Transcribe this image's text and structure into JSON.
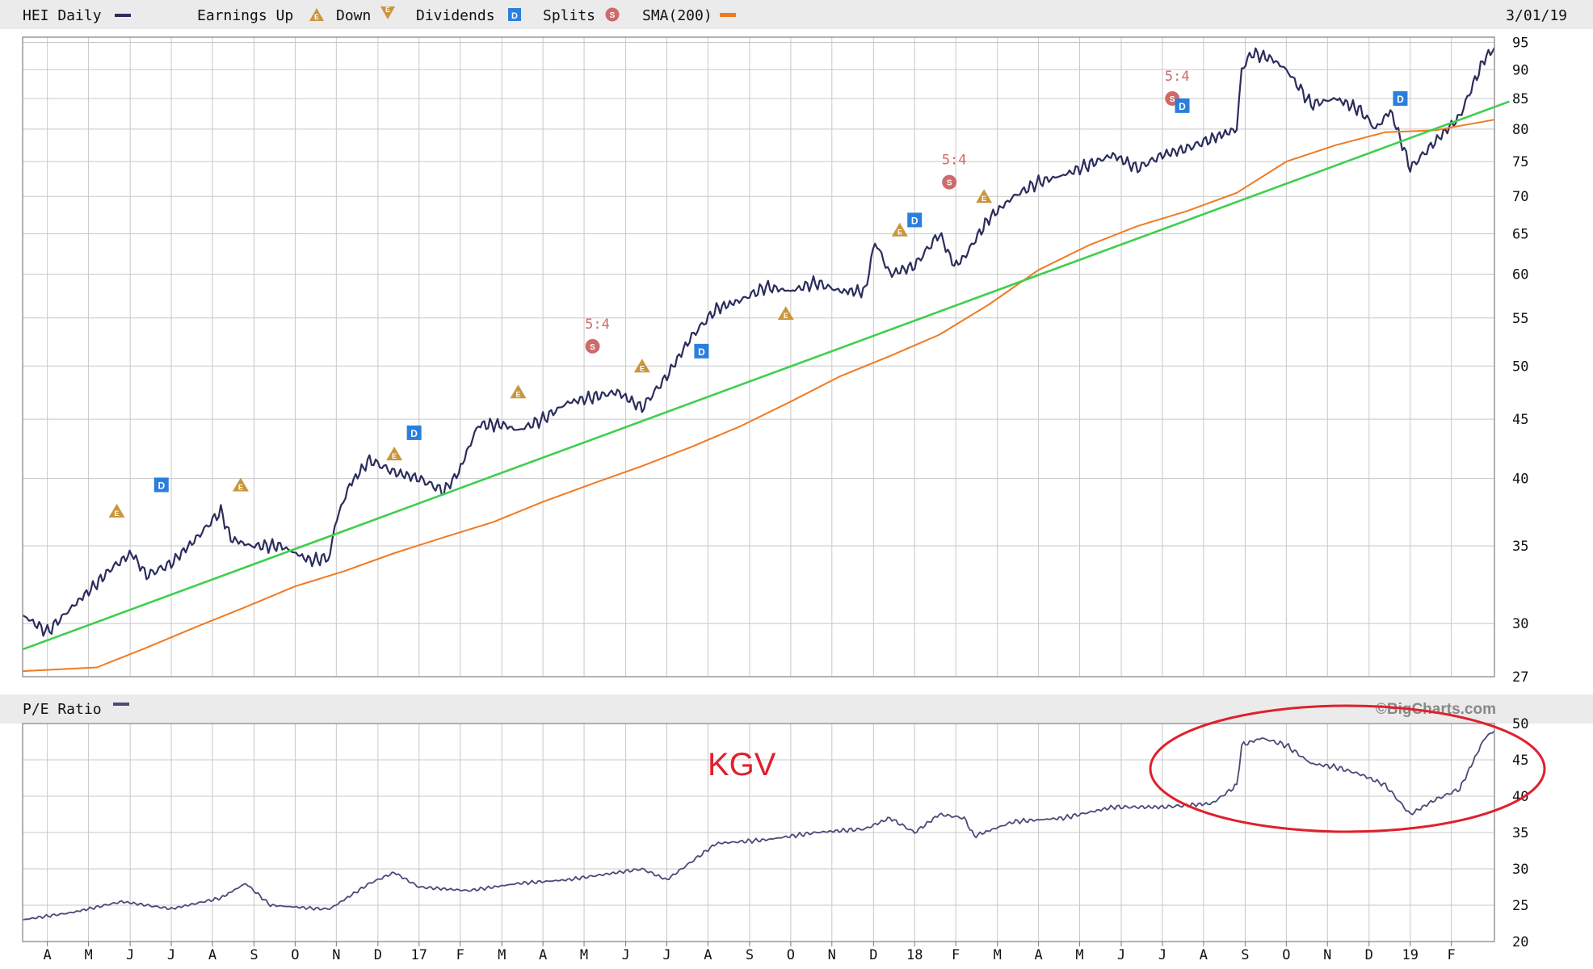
{
  "header": {
    "symbol_label": "HEI Daily",
    "earnings_up_label": "Earnings Up",
    "earnings_down_label": "Down",
    "dividends_label": "Dividends",
    "splits_label": "Splits",
    "sma_label": "SMA(200)",
    "date_label": "3/01/19",
    "earnings_icon_letter": "E",
    "dividend_icon_letter": "D",
    "split_icon_letter": "S"
  },
  "lower_header": {
    "pe_label": "P/E Ratio",
    "copyright": "©BigCharts.com"
  },
  "annotation": {
    "text": "KGV",
    "color": "#e0202c"
  },
  "colors": {
    "price": "#2b2d5c",
    "sma": "#f07a22",
    "trend": "#3ecf4e",
    "pe": "#4a4a78",
    "grid": "#c8c8c8",
    "header_bg": "#ebebeb",
    "earnings": "#c8963c",
    "dividend": "#2a7fdc",
    "split": "#cf6a6a"
  },
  "chart_data": [
    {
      "type": "line",
      "title": "HEI Daily",
      "log_scale": true,
      "ylim": [
        27,
        96
      ],
      "y_ticks": [
        27,
        30,
        35,
        40,
        45,
        50,
        55,
        60,
        65,
        70,
        75,
        80,
        85,
        90,
        95
      ],
      "x_range": [
        2016.2,
        2019.17
      ],
      "x_ticks": [
        {
          "t": 2016.25,
          "label": "A"
        },
        {
          "t": 2016.333,
          "label": "M"
        },
        {
          "t": 2016.417,
          "label": "J"
        },
        {
          "t": 2016.5,
          "label": "J"
        },
        {
          "t": 2016.583,
          "label": "A"
        },
        {
          "t": 2016.667,
          "label": "S"
        },
        {
          "t": 2016.75,
          "label": "O"
        },
        {
          "t": 2016.833,
          "label": "N"
        },
        {
          "t": 2016.917,
          "label": "D"
        },
        {
          "t": 2017.0,
          "label": "17"
        },
        {
          "t": 2017.083,
          "label": "F"
        },
        {
          "t": 2017.167,
          "label": "M"
        },
        {
          "t": 2017.25,
          "label": "A"
        },
        {
          "t": 2017.333,
          "label": "M"
        },
        {
          "t": 2017.417,
          "label": "J"
        },
        {
          "t": 2017.5,
          "label": "J"
        },
        {
          "t": 2017.583,
          "label": "A"
        },
        {
          "t": 2017.667,
          "label": "S"
        },
        {
          "t": 2017.75,
          "label": "O"
        },
        {
          "t": 2017.833,
          "label": "N"
        },
        {
          "t": 2017.917,
          "label": "D"
        },
        {
          "t": 2018.0,
          "label": "18"
        },
        {
          "t": 2018.083,
          "label": "F"
        },
        {
          "t": 2018.167,
          "label": "M"
        },
        {
          "t": 2018.25,
          "label": "A"
        },
        {
          "t": 2018.333,
          "label": "M"
        },
        {
          "t": 2018.417,
          "label": "J"
        },
        {
          "t": 2018.5,
          "label": "J"
        },
        {
          "t": 2018.583,
          "label": "A"
        },
        {
          "t": 2018.667,
          "label": "S"
        },
        {
          "t": 2018.75,
          "label": "O"
        },
        {
          "t": 2018.833,
          "label": "N"
        },
        {
          "t": 2018.917,
          "label": "D"
        },
        {
          "t": 2019.0,
          "label": "19"
        },
        {
          "t": 2019.083,
          "label": "F"
        }
      ],
      "series": [
        {
          "name": "HEI Daily",
          "x": [
            2016.2,
            2016.25,
            2016.3,
            2016.35,
            2016.38,
            2016.42,
            2016.45,
            2016.5,
            2016.55,
            2016.6,
            2016.62,
            2016.66,
            2016.72,
            2016.78,
            2016.82,
            2016.83,
            2016.86,
            2016.9,
            2016.95,
            2017.0,
            2017.05,
            2017.08,
            2017.12,
            2017.17,
            2017.2,
            2017.25,
            2017.3,
            2017.35,
            2017.4,
            2017.45,
            2017.5,
            2017.55,
            2017.6,
            2017.65,
            2017.7,
            2017.75,
            2017.8,
            2017.85,
            2017.9,
            2017.92,
            2017.95,
            2018.0,
            2018.05,
            2018.08,
            2018.1,
            2018.15,
            2018.2,
            2018.25,
            2018.3,
            2018.35,
            2018.4,
            2018.45,
            2018.5,
            2018.55,
            2018.6,
            2018.65,
            2018.66,
            2018.68,
            2018.72,
            2018.75,
            2018.8,
            2018.85,
            2018.9,
            2018.93,
            2018.96,
            2019.0,
            2019.05,
            2019.1,
            2019.15,
            2019.17
          ],
          "values": [
            30.5,
            29.5,
            31.0,
            32.5,
            33.5,
            34.5,
            33.0,
            33.8,
            35.5,
            37.5,
            35.5,
            35.0,
            35.0,
            34.0,
            34.2,
            36.5,
            39.5,
            41.5,
            40.5,
            40.0,
            39.0,
            40.5,
            44.5,
            44.5,
            44.0,
            45.0,
            46.5,
            47.0,
            47.5,
            46.0,
            49.0,
            53.0,
            56.0,
            57.0,
            58.5,
            58.0,
            59.0,
            58.0,
            58.0,
            64.0,
            60.0,
            61.0,
            65.0,
            61.0,
            62.0,
            67.0,
            70.0,
            72.0,
            73.0,
            74.5,
            76.0,
            74.0,
            76.0,
            77.0,
            78.5,
            80.0,
            90.0,
            93.0,
            92.0,
            90.0,
            84.0,
            85.0,
            83.0,
            80.0,
            83.0,
            74.0,
            78.0,
            82.0,
            92.0,
            94.0
          ]
        },
        {
          "name": "SMA(200)",
          "x": [
            2016.2,
            2016.35,
            2016.45,
            2016.55,
            2016.65,
            2016.75,
            2016.85,
            2016.95,
            2017.05,
            2017.15,
            2017.25,
            2017.35,
            2017.45,
            2017.55,
            2017.65,
            2017.75,
            2017.85,
            2017.95,
            2018.05,
            2018.15,
            2018.25,
            2018.35,
            2018.45,
            2018.55,
            2018.65,
            2018.75,
            2018.85,
            2018.95,
            2019.05,
            2019.17
          ],
          "values": [
            27.3,
            27.5,
            28.6,
            29.8,
            31.0,
            32.3,
            33.3,
            34.5,
            35.6,
            36.7,
            38.2,
            39.6,
            41.0,
            42.6,
            44.4,
            46.6,
            49.0,
            51.0,
            53.2,
            56.5,
            60.5,
            63.5,
            66.0,
            68.0,
            70.5,
            75.0,
            77.5,
            79.5,
            79.8,
            81.5
          ]
        },
        {
          "name": "trend",
          "x": [
            2016.2,
            2019.2
          ],
          "values": [
            28.5,
            84.5
          ]
        }
      ],
      "events": [
        {
          "kind": "earnings_up",
          "t": 2016.39,
          "v": 37.5
        },
        {
          "kind": "dividend",
          "t": 2016.48,
          "v": 39.5
        },
        {
          "kind": "earnings_up",
          "t": 2016.64,
          "v": 39.5
        },
        {
          "kind": "earnings_up",
          "t": 2016.95,
          "v": 42.0
        },
        {
          "kind": "dividend",
          "t": 2016.99,
          "v": 43.8
        },
        {
          "kind": "earnings_up",
          "t": 2017.2,
          "v": 47.5
        },
        {
          "kind": "split",
          "t": 2017.35,
          "v": 52.0,
          "ratio": "5:4"
        },
        {
          "kind": "earnings_up",
          "t": 2017.45,
          "v": 50.0
        },
        {
          "kind": "dividend",
          "t": 2017.57,
          "v": 51.5
        },
        {
          "kind": "earnings_up",
          "t": 2017.74,
          "v": 55.5
        },
        {
          "kind": "earnings_up",
          "t": 2017.97,
          "v": 65.5
        },
        {
          "kind": "dividend",
          "t": 2018.0,
          "v": 66.8
        },
        {
          "kind": "split",
          "t": 2018.07,
          "v": 72.0,
          "ratio": "5:4"
        },
        {
          "kind": "earnings_up",
          "t": 2018.14,
          "v": 70.0
        },
        {
          "kind": "split",
          "t": 2018.52,
          "v": 85.0,
          "ratio": "5:4"
        },
        {
          "kind": "dividend",
          "t": 2018.54,
          "v": 83.8
        },
        {
          "kind": "dividend",
          "t": 2018.98,
          "v": 85.0
        }
      ]
    },
    {
      "type": "line",
      "title": "P/E Ratio",
      "ylim": [
        20,
        50
      ],
      "y_ticks": [
        20,
        25,
        30,
        35,
        40,
        45,
        50
      ],
      "series": [
        {
          "name": "P/E Ratio",
          "x": [
            2016.2,
            2016.3,
            2016.4,
            2016.5,
            2016.6,
            2016.65,
            2016.7,
            2016.8,
            2016.82,
            2016.9,
            2016.95,
            2017.0,
            2017.1,
            2017.2,
            2017.3,
            2017.4,
            2017.45,
            2017.5,
            2017.55,
            2017.6,
            2017.7,
            2017.8,
            2017.9,
            2017.95,
            2018.0,
            2018.05,
            2018.1,
            2018.12,
            2018.2,
            2018.3,
            2018.4,
            2018.5,
            2018.6,
            2018.65,
            2018.66,
            2018.7,
            2018.75,
            2018.8,
            2018.85,
            2018.9,
            2018.95,
            2019.0,
            2019.05,
            2019.1,
            2019.15,
            2019.17
          ],
          "values": [
            23.0,
            24.0,
            25.5,
            24.5,
            26.0,
            28.0,
            25.0,
            24.5,
            24.5,
            28.0,
            29.5,
            27.5,
            27.0,
            28.0,
            28.5,
            29.5,
            30.0,
            28.5,
            31.0,
            33.5,
            34.0,
            35.0,
            35.5,
            37.0,
            35.0,
            37.5,
            37.0,
            34.5,
            36.5,
            37.0,
            38.5,
            38.5,
            39.0,
            41.5,
            47.0,
            48.0,
            47.0,
            44.5,
            44.0,
            43.0,
            41.5,
            37.5,
            39.5,
            41.0,
            48.0,
            49.0
          ]
        }
      ]
    }
  ]
}
